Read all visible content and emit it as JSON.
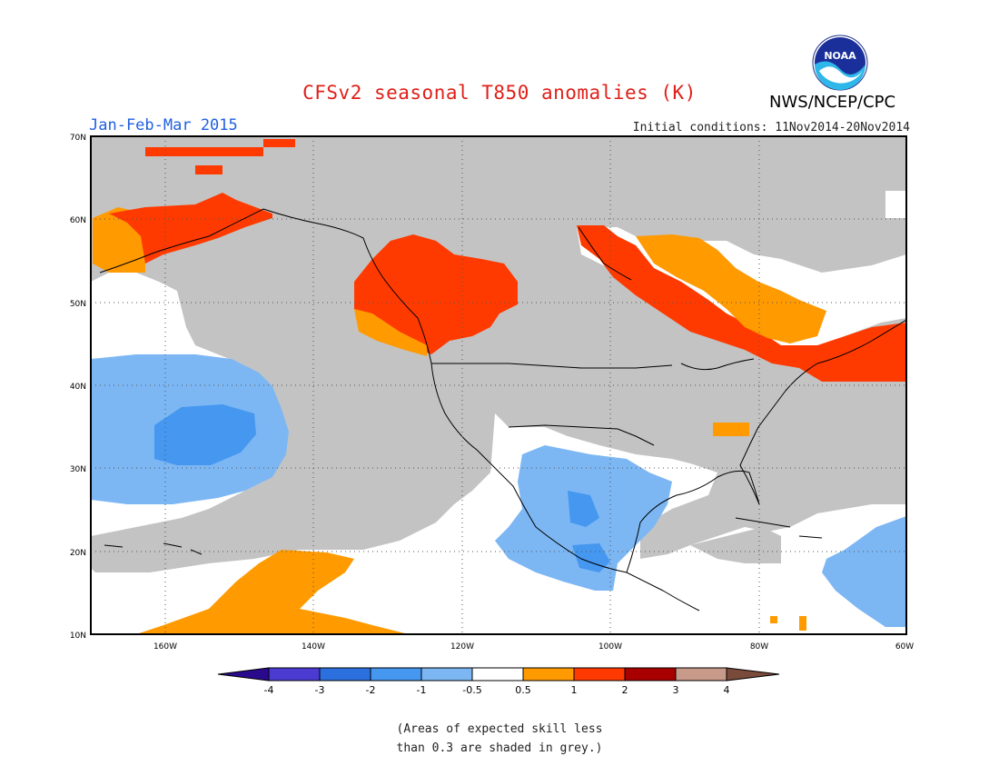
{
  "header": {
    "title": "CFSv2 seasonal T850 anomalies (K)",
    "agency": "NWS/NCEP/CPC",
    "logo_text": "NOAA",
    "period": "Jan-Feb-Mar 2015",
    "initial_conditions": "Initial conditions: 11Nov2014-20Nov2014"
  },
  "map": {
    "lon_range": [
      -170,
      -60
    ],
    "lat_range": [
      10,
      70
    ],
    "lat_labels": [
      "70N",
      "60N",
      "50N",
      "40N",
      "30N",
      "20N",
      "10N"
    ],
    "lon_labels": [
      "160W",
      "140W",
      "120W",
      "100W",
      "80W",
      "60W"
    ]
  },
  "legend": {
    "labels": [
      "-4",
      "-3",
      "-2",
      "-1",
      "-0.5",
      "0.5",
      "1",
      "2",
      "3",
      "4"
    ],
    "colors": [
      "#2a0a8c",
      "#4c3bd0",
      "#2c6fde",
      "#4597ef",
      "#7cb7f4",
      "#ffffff",
      "#ff9a00",
      "#ff3a00",
      "#a80000",
      "#c89a8a",
      "#7a4a3a"
    ]
  },
  "colors": {
    "grey": "#c3c3c3",
    "cool_light": "#7cb7f4",
    "cool_mid": "#4597ef",
    "warm_orange": "#ff9a00",
    "warm_red": "#ff3a00"
  },
  "note": {
    "line1": "(Areas of expected skill less",
    "line2": "than 0.3 are shaded in grey.)"
  }
}
